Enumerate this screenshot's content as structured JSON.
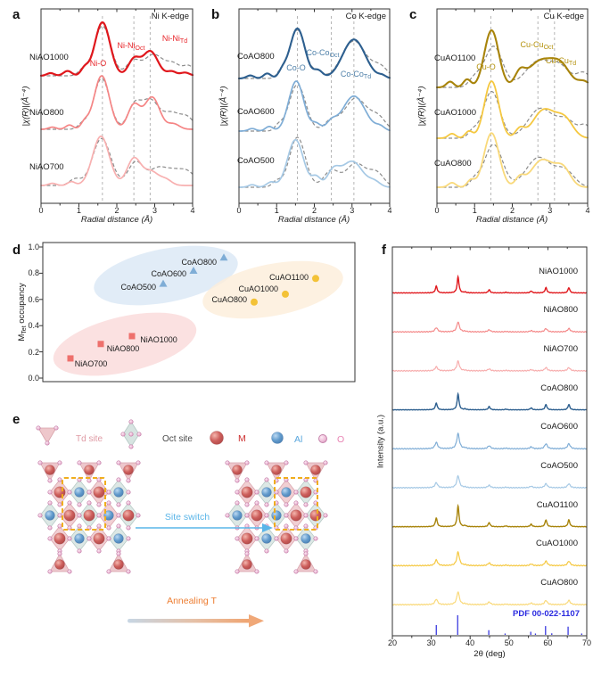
{
  "panel_tags": {
    "a": "a",
    "b": "b",
    "c": "c",
    "d": "d",
    "e": "e",
    "f": "f"
  },
  "chart_data": [
    {
      "id": "a",
      "type": "line",
      "tag": "a",
      "edge_label": "Ni K-edge",
      "xlabel": "Radial distance (Å)",
      "ylabel": "|χ(R)|(Å⁻⁴)",
      "xlim": [
        0,
        4
      ],
      "xticks": [
        "0",
        "1",
        "2",
        "3",
        "4"
      ],
      "dashed_guides": [
        1.62,
        2.45,
        2.88
      ],
      "fit_color": "#8c8c8c",
      "peak_labels": [
        {
          "base": "Ni-O",
          "sub": "",
          "color": "#e8252a"
        },
        {
          "base": "Ni-Ni",
          "sub": "Oct",
          "color": "#e8252a"
        },
        {
          "base": "Ni-Ni",
          "sub": "Td",
          "color": "#e8252a"
        }
      ],
      "series": [
        {
          "name": "NiAO1000",
          "color": "#e0171c",
          "width": 2.2,
          "peaks": [
            [
              0.25,
              0.05,
              0.1
            ],
            [
              0.7,
              0.09,
              0.11
            ],
            [
              1.15,
              0.13,
              0.1
            ],
            [
              1.62,
              1.0,
              0.2
            ],
            [
              2.45,
              0.3,
              0.15
            ],
            [
              2.88,
              0.46,
              0.2
            ],
            [
              3.45,
              0.08,
              0.12
            ],
            [
              3.8,
              0.06,
              0.12
            ]
          ],
          "fit_peaks": [
            [
              1.1,
              0.1,
              0.12
            ],
            [
              1.62,
              0.93,
              0.22
            ],
            [
              2.42,
              0.26,
              0.17
            ],
            [
              2.97,
              0.4,
              0.26
            ],
            [
              3.5,
              0.2,
              0.18
            ],
            [
              3.9,
              0.18,
              0.15
            ]
          ]
        },
        {
          "name": "NiAO800",
          "color": "#f58585",
          "width": 1.7,
          "peaks": [
            [
              0.3,
              0.04,
              0.1
            ],
            [
              0.75,
              0.08,
              0.1
            ],
            [
              1.15,
              0.12,
              0.1
            ],
            [
              1.6,
              1.0,
              0.2
            ],
            [
              2.45,
              0.45,
              0.16
            ],
            [
              2.93,
              0.6,
              0.2
            ],
            [
              3.5,
              0.1,
              0.15
            ]
          ],
          "fit_peaks": [
            [
              1.1,
              0.1,
              0.12
            ],
            [
              1.6,
              0.95,
              0.21
            ],
            [
              2.45,
              0.4,
              0.17
            ],
            [
              2.88,
              0.55,
              0.24
            ],
            [
              3.45,
              0.28,
              0.2
            ],
            [
              3.85,
              0.22,
              0.18
            ]
          ]
        },
        {
          "name": "NiAO700",
          "color": "#f8b0b0",
          "width": 1.7,
          "peaks": [
            [
              0.3,
              0.04,
              0.1
            ],
            [
              0.8,
              0.07,
              0.1
            ],
            [
              1.58,
              0.92,
              0.22
            ],
            [
              2.45,
              0.5,
              0.18
            ],
            [
              2.9,
              0.26,
              0.2
            ],
            [
              3.3,
              0.1,
              0.15
            ]
          ],
          "fit_peaks": [
            [
              0.9,
              0.12,
              0.15
            ],
            [
              1.6,
              0.88,
              0.24
            ],
            [
              2.5,
              0.44,
              0.2
            ],
            [
              3.05,
              0.28,
              0.22
            ],
            [
              3.5,
              0.26,
              0.25
            ],
            [
              3.9,
              0.2,
              0.2
            ]
          ]
        }
      ]
    },
    {
      "id": "b",
      "type": "line",
      "tag": "b",
      "edge_label": "Co K-edge",
      "xlabel": "Radial distance (Å)",
      "ylabel": "|χ(R)|(Å⁻⁴)",
      "xlim": [
        0,
        4
      ],
      "xticks": [
        "0",
        "1",
        "2",
        "3",
        "4"
      ],
      "dashed_guides": [
        1.55,
        2.45,
        3.05
      ],
      "fit_color": "#8c8c8c",
      "peak_labels": [
        {
          "base": "Co-O",
          "sub": "",
          "color": "#4d7fa8"
        },
        {
          "base": "Co-Co",
          "sub": "Oct",
          "color": "#4d7fa8"
        },
        {
          "base": "Co-Co",
          "sub": "Td",
          "color": "#4d7fa8"
        }
      ],
      "series": [
        {
          "name": "CoAO800",
          "color": "#2d5f8f",
          "width": 2.1,
          "peaks": [
            [
              0.3,
              0.06,
              0.1
            ],
            [
              0.75,
              0.1,
              0.1
            ],
            [
              1.15,
              0.12,
              0.1
            ],
            [
              1.55,
              1.0,
              0.2
            ],
            [
              2.1,
              0.15,
              0.12
            ],
            [
              3.05,
              0.78,
              0.3
            ],
            [
              3.8,
              0.05,
              0.1
            ]
          ],
          "fit_peaks": [
            [
              1.1,
              0.1,
              0.1
            ],
            [
              1.55,
              0.97,
              0.21
            ],
            [
              2.1,
              0.13,
              0.13
            ],
            [
              3.05,
              0.75,
              0.32
            ],
            [
              3.75,
              0.22,
              0.2
            ]
          ]
        },
        {
          "name": "CoAO600",
          "color": "#7fadd6",
          "width": 1.7,
          "peaks": [
            [
              0.35,
              0.05,
              0.1
            ],
            [
              0.8,
              0.09,
              0.1
            ],
            [
              1.52,
              1.0,
              0.2
            ],
            [
              2.05,
              0.14,
              0.12
            ],
            [
              2.45,
              0.16,
              0.14
            ],
            [
              3.05,
              0.7,
              0.3
            ],
            [
              3.75,
              0.08,
              0.12
            ]
          ],
          "fit_peaks": [
            [
              1.05,
              0.1,
              0.1
            ],
            [
              1.55,
              0.93,
              0.22
            ],
            [
              2.45,
              0.2,
              0.18
            ],
            [
              3.1,
              0.66,
              0.3
            ],
            [
              3.7,
              0.25,
              0.2
            ]
          ]
        },
        {
          "name": "CoAO500",
          "color": "#a6c9e5",
          "width": 1.7,
          "peaks": [
            [
              0.35,
              0.05,
              0.1
            ],
            [
              0.85,
              0.1,
              0.12
            ],
            [
              1.5,
              0.95,
              0.21
            ],
            [
              2.05,
              0.2,
              0.12
            ],
            [
              2.5,
              0.3,
              0.16
            ],
            [
              3.0,
              0.52,
              0.28
            ],
            [
              3.6,
              0.1,
              0.15
            ]
          ],
          "fit_peaks": [
            [
              1.0,
              0.12,
              0.12
            ],
            [
              1.55,
              1.0,
              0.21
            ],
            [
              2.45,
              0.33,
              0.2
            ],
            [
              3.1,
              0.48,
              0.26
            ],
            [
              3.65,
              0.28,
              0.2
            ]
          ]
        }
      ]
    },
    {
      "id": "c",
      "type": "line",
      "tag": "c",
      "edge_label": "Cu K-edge",
      "xlabel": "Radial distance (Å)",
      "ylabel": "|χ(R)|(Å⁻⁴)",
      "xlim": [
        0,
        4
      ],
      "xticks": [
        "0",
        "1",
        "2",
        "3",
        "4"
      ],
      "dashed_guides": [
        1.43,
        2.68,
        3.12
      ],
      "fit_color": "#8c8c8c",
      "peak_labels": [
        {
          "base": "Cu-O",
          "sub": "",
          "color": "#b5930f"
        },
        {
          "base": "Cu-Cu",
          "sub": "Oct",
          "color": "#b5930f"
        },
        {
          "base": "Cu-Cu",
          "sub": "Td",
          "color": "#b5930f"
        }
      ],
      "series": [
        {
          "name": "CuAO1100",
          "color": "#a8840b",
          "width": 2.1,
          "peaks": [
            [
              0.35,
              0.1,
              0.1
            ],
            [
              0.8,
              0.14,
              0.1
            ],
            [
              1.45,
              1.0,
              0.19
            ],
            [
              2.2,
              0.2,
              0.13
            ],
            [
              2.75,
              0.46,
              0.35
            ],
            [
              3.3,
              0.32,
              0.25
            ],
            [
              3.9,
              0.1,
              0.15
            ]
          ],
          "fit_peaks": [
            [
              1.0,
              0.15,
              0.15
            ],
            [
              1.5,
              0.72,
              0.24
            ],
            [
              2.7,
              0.46,
              0.35
            ],
            [
              3.3,
              0.3,
              0.25
            ],
            [
              3.9,
              0.25,
              0.2
            ]
          ]
        },
        {
          "name": "CuAO1000",
          "color": "#f5c840",
          "width": 1.8,
          "peaks": [
            [
              0.4,
              0.08,
              0.1
            ],
            [
              0.85,
              0.12,
              0.1
            ],
            [
              1.45,
              1.0,
              0.19
            ],
            [
              2.2,
              0.15,
              0.12
            ],
            [
              2.85,
              0.5,
              0.3
            ],
            [
              3.4,
              0.3,
              0.22
            ]
          ],
          "fit_peaks": [
            [
              0.95,
              0.12,
              0.12
            ],
            [
              1.45,
              0.82,
              0.22
            ],
            [
              2.75,
              0.52,
              0.33
            ],
            [
              3.45,
              0.3,
              0.25
            ],
            [
              3.95,
              0.2,
              0.15
            ]
          ]
        },
        {
          "name": "CuAO800",
          "color": "#f9d97a",
          "width": 1.8,
          "peaks": [
            [
              0.4,
              0.08,
              0.1
            ],
            [
              0.9,
              0.12,
              0.1
            ],
            [
              1.45,
              0.95,
              0.2
            ],
            [
              2.2,
              0.15,
              0.12
            ],
            [
              2.8,
              0.48,
              0.3
            ],
            [
              3.35,
              0.3,
              0.2
            ]
          ],
          "fit_peaks": [
            [
              1.0,
              0.12,
              0.12
            ],
            [
              1.5,
              0.75,
              0.24
            ],
            [
              2.7,
              0.52,
              0.33
            ],
            [
              3.4,
              0.28,
              0.25
            ]
          ]
        }
      ]
    },
    {
      "id": "d",
      "type": "scatter",
      "tag": "d",
      "ylabel_parts": {
        "pre": "M",
        "sub": "Tet",
        "post": " occupancy"
      },
      "ylim": [
        0,
        1
      ],
      "yticks": [
        "0.0",
        "0.2",
        "0.4",
        "0.6",
        "0.8",
        "1.0"
      ],
      "groups": [
        {
          "name": "Ni",
          "marker": "square",
          "color": "#ee706c",
          "ellipse_color": "#fadada"
        },
        {
          "name": "Co",
          "marker": "triangle",
          "color": "#7fadd6",
          "ellipse_color": "#dae7f5"
        },
        {
          "name": "Cu",
          "marker": "circle",
          "color": "#f3c237",
          "ellipse_color": "#fdeeda"
        }
      ],
      "points": [
        {
          "name": "NiAO700",
          "group": "Ni",
          "y": 0.15
        },
        {
          "name": "NiAO800",
          "group": "Ni",
          "y": 0.26
        },
        {
          "name": "NiAO1000",
          "group": "Ni",
          "y": 0.32
        },
        {
          "name": "CoAO500",
          "group": "Co",
          "y": 0.72
        },
        {
          "name": "CoAO600",
          "group": "Co",
          "y": 0.82
        },
        {
          "name": "CoAO800",
          "group": "Co",
          "y": 0.92
        },
        {
          "name": "CuAO800",
          "group": "Cu",
          "y": 0.58
        },
        {
          "name": "CuAO1000",
          "group": "Cu",
          "y": 0.64
        },
        {
          "name": "CuAO1100",
          "group": "Cu",
          "y": 0.76
        }
      ]
    },
    {
      "id": "f",
      "type": "xrd",
      "tag": "f",
      "xlabel": "2θ (deg)",
      "ylabel": "Intensity (a.u.)",
      "xlim": [
        20,
        70
      ],
      "xticks": [
        "20",
        "30",
        "40",
        "50",
        "60",
        "70"
      ],
      "peak_positions": [
        31.3,
        36.9,
        38.7,
        44.9,
        49.2,
        55.7,
        59.5,
        65.4
      ],
      "peak_intensities": [
        0.42,
        1.0,
        0.05,
        0.2,
        0.04,
        0.12,
        0.33,
        0.33
      ],
      "series": [
        {
          "name": "NiAO1000",
          "color": "#e0171c",
          "scale": 1.0,
          "sharp": true
        },
        {
          "name": "NiAO800",
          "color": "#f48a8a",
          "scale": 0.62,
          "sharp": false
        },
        {
          "name": "NiAO700",
          "color": "#f7adad",
          "scale": 0.6,
          "sharp": false
        },
        {
          "name": "CoAO800",
          "color": "#2d5f8f",
          "scale": 1.0,
          "sharp": true
        },
        {
          "name": "CoAO600",
          "color": "#7fadd6",
          "scale": 0.95,
          "sharp": false
        },
        {
          "name": "CoAO500",
          "color": "#a6c9e5",
          "scale": 0.75,
          "sharp": false
        },
        {
          "name": "CuAO1100",
          "color": "#a8840b",
          "scale": 1.3,
          "sharp": true
        },
        {
          "name": "CuAO1000",
          "color": "#f5c840",
          "scale": 0.85,
          "sharp": false
        },
        {
          "name": "CuAO800",
          "color": "#f9d97a",
          "scale": 0.8,
          "sharp": false
        }
      ],
      "reference": {
        "label": "PDF 00-022-1107",
        "color": "#2b2be0",
        "sticks": [
          [
            31.3,
            0.5
          ],
          [
            36.8,
            1.0
          ],
          [
            44.8,
            0.24
          ],
          [
            49.0,
            0.07
          ],
          [
            55.6,
            0.16
          ],
          [
            56.8,
            0.07
          ],
          [
            59.4,
            0.45
          ],
          [
            61.0,
            0.08
          ],
          [
            65.2,
            0.42
          ],
          [
            68.7,
            0.07
          ]
        ]
      }
    }
  ],
  "panel_e": {
    "tag": "e",
    "td_site": "Td site",
    "oct_site": "Oct site",
    "m_label": "M",
    "al_label": "Al",
    "o_label": "O",
    "site_switch": "Site switch",
    "annealing": "Annealing T",
    "colors": {
      "m": "#cc2b2b",
      "al": "#5aa7dd",
      "o": "#e884b4",
      "td_text": "#df9aa4",
      "oct_text": "#4a4a4a",
      "td_fill": "#eec7cb",
      "oct_fill": "#d7e4e1",
      "highlight_box": "#f0ad1e",
      "switch_arrow": "#5ab5e8",
      "annealing_text": "#ed7d31"
    }
  }
}
